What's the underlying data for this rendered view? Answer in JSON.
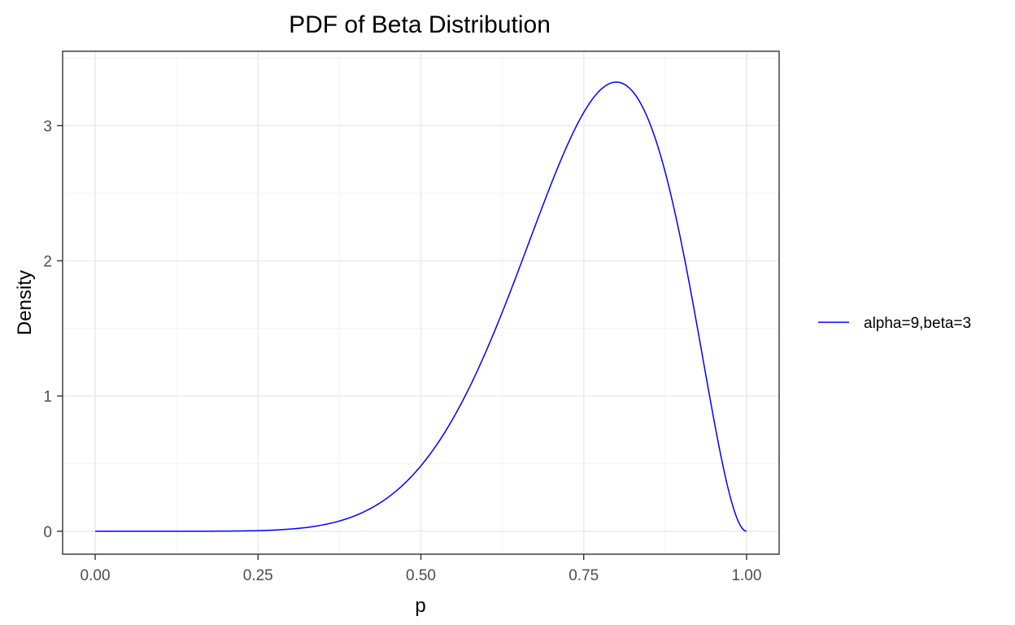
{
  "chart_data": {
    "type": "line",
    "title": "PDF of Beta Distribution",
    "xlabel": "p",
    "ylabel": "Density",
    "xlim": [
      -0.05,
      1.05
    ],
    "ylim": [
      -0.17,
      3.55
    ],
    "x_ticks": [
      0.0,
      0.25,
      0.5,
      0.75,
      1.0
    ],
    "x_tick_labels": [
      "0.00",
      "0.25",
      "0.50",
      "0.75",
      "1.00"
    ],
    "y_ticks": [
      0,
      1,
      2,
      3
    ],
    "y_tick_labels": [
      "0",
      "1",
      "2",
      "3"
    ],
    "grid": true,
    "legend_position": "right",
    "series": [
      {
        "name": "alpha=9,beta=3",
        "color": "#0000ff",
        "distribution": "beta",
        "alpha": 9,
        "beta": 3,
        "x": [
          0.0,
          0.05,
          0.1,
          0.15,
          0.2,
          0.25,
          0.3,
          0.35,
          0.4,
          0.45,
          0.5,
          0.55,
          0.6,
          0.65,
          0.7,
          0.75,
          0.8,
          0.85,
          0.9,
          0.95,
          1.0
        ],
        "y": [
          0.0,
          0.0,
          0.0,
          0.0,
          0.001,
          0.006,
          0.019,
          0.056,
          0.14,
          0.304,
          0.537,
          0.919,
          1.407,
          2.023,
          2.677,
          3.168,
          3.322,
          3.005,
          2.13,
          0.827,
          0.0
        ]
      }
    ]
  }
}
